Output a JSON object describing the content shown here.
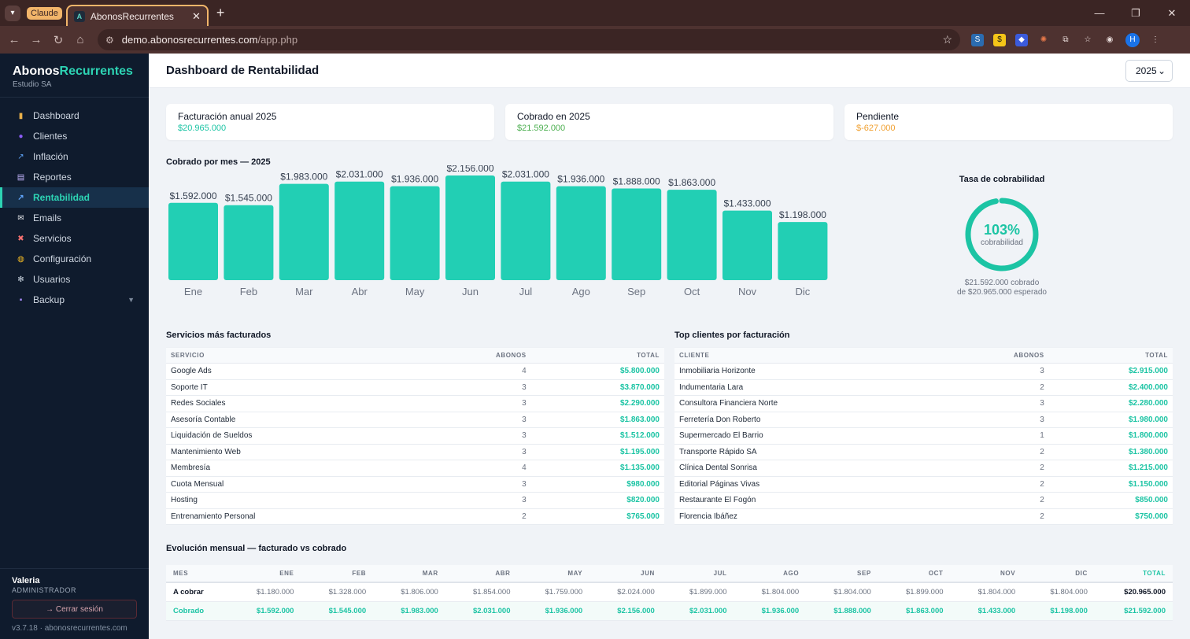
{
  "browser": {
    "tab_group": "Claude",
    "tab_title": "AbonosRecurrentes",
    "tab_favicon": "A",
    "url_host": "demo.abonosrecurrentes.com",
    "url_path": "/app.php",
    "profile_initial": "H"
  },
  "sidebar": {
    "brand_a": "Abonos",
    "brand_b": "Recurrentes",
    "org": "Estudio SA",
    "items": [
      {
        "label": "Dashboard",
        "icon": "chart-icon",
        "color": "#e8b04a"
      },
      {
        "label": "Clientes",
        "icon": "users-icon",
        "color": "#8b5cf6"
      },
      {
        "label": "Inflación",
        "icon": "trend-icon",
        "color": "#60a5fa"
      },
      {
        "label": "Reportes",
        "icon": "printer-icon",
        "color": "#c4b5fd"
      },
      {
        "label": "Rentabilidad",
        "icon": "trend-icon",
        "color": "#60a5fa"
      },
      {
        "label": "Emails",
        "icon": "mail-icon",
        "color": "#e5e7eb"
      },
      {
        "label": "Servicios",
        "icon": "tools-icon",
        "color": "#f87171"
      },
      {
        "label": "Configuración",
        "icon": "palette-icon",
        "color": "#fbbf24"
      },
      {
        "label": "Usuarios",
        "icon": "gear-icon",
        "color": "#cbd5e1"
      },
      {
        "label": "Backup",
        "icon": "disk-icon",
        "color": "#a78bfa"
      }
    ],
    "active_index": 4,
    "user_name": "Valeria",
    "user_role": "ADMINISTRADOR",
    "logout_label": "→ Cerrar sesión",
    "version": "v3.7.18 · abonosrecurrentes.com"
  },
  "header": {
    "title": "Dashboard de Rentabilidad",
    "year": "2025"
  },
  "kpis": [
    {
      "label": "Facturación anual 2025",
      "value": "$20.965.000",
      "color": "#1cc4a4"
    },
    {
      "label": "Cobrado en 2025",
      "value": "$21.592.000",
      "color": "#4caf50"
    },
    {
      "label": "Pendiente",
      "value": "$-627.000",
      "color": "#f0a030"
    }
  ],
  "chart_data": {
    "type": "bar",
    "title": "Cobrado por mes — 2025",
    "categories": [
      "Ene",
      "Feb",
      "Mar",
      "Abr",
      "May",
      "Jun",
      "Jul",
      "Ago",
      "Sep",
      "Oct",
      "Nov",
      "Dic"
    ],
    "values": [
      1592000,
      1545000,
      1983000,
      2031000,
      1936000,
      2156000,
      2031000,
      1936000,
      1888000,
      1863000,
      1433000,
      1198000
    ],
    "labels": [
      "$1.592.000",
      "$1.545.000",
      "$1.983.000",
      "$2.031.000",
      "$1.936.000",
      "$2.156.000",
      "$2.031.000",
      "$1.936.000",
      "$1.888.000",
      "$1.863.000",
      "$1.433.000",
      "$1.198.000"
    ],
    "color": "#22cfb4",
    "grid": false,
    "xlabel": "",
    "ylabel": ""
  },
  "ring": {
    "title": "Tasa de cobrabilidad",
    "percent_label": "103%",
    "percent": 103,
    "sub": "cobrabilidad",
    "foot1": "$21.592.000 cobrado",
    "foot2": "de $20.965.000 esperado"
  },
  "services": {
    "title": "Servicios más facturados",
    "headers": [
      "SERVICIO",
      "ABONOS",
      "TOTAL"
    ],
    "rows": [
      [
        "Google Ads",
        "4",
        "$5.800.000"
      ],
      [
        "Soporte IT",
        "3",
        "$3.870.000"
      ],
      [
        "Redes Sociales",
        "3",
        "$2.290.000"
      ],
      [
        "Asesoría Contable",
        "3",
        "$1.863.000"
      ],
      [
        "Liquidación de Sueldos",
        "3",
        "$1.512.000"
      ],
      [
        "Mantenimiento Web",
        "3",
        "$1.195.000"
      ],
      [
        "Membresía",
        "4",
        "$1.135.000"
      ],
      [
        "Cuota Mensual",
        "3",
        "$980.000"
      ],
      [
        "Hosting",
        "3",
        "$820.000"
      ],
      [
        "Entrenamiento Personal",
        "2",
        "$765.000"
      ]
    ]
  },
  "clients": {
    "title": "Top clientes por facturación",
    "headers": [
      "CLIENTE",
      "ABONOS",
      "TOTAL"
    ],
    "rows": [
      [
        "Inmobiliaria Horizonte",
        "3",
        "$2.915.000"
      ],
      [
        "Indumentaria Lara",
        "2",
        "$2.400.000"
      ],
      [
        "Consultora Financiera Norte",
        "3",
        "$2.280.000"
      ],
      [
        "Ferretería Don Roberto",
        "3",
        "$1.980.000"
      ],
      [
        "Supermercado El Barrio",
        "1",
        "$1.800.000"
      ],
      [
        "Transporte Rápido SA",
        "2",
        "$1.380.000"
      ],
      [
        "Clínica Dental Sonrisa",
        "2",
        "$1.215.000"
      ],
      [
        "Editorial Páginas Vivas",
        "2",
        "$1.150.000"
      ],
      [
        "Restaurante El Fogón",
        "2",
        "$850.000"
      ],
      [
        "Florencia Ibáñez",
        "2",
        "$750.000"
      ]
    ]
  },
  "evolution": {
    "title": "Evolución mensual — facturado vs cobrado",
    "headers": [
      "MES",
      "ENE",
      "FEB",
      "MAR",
      "ABR",
      "MAY",
      "JUN",
      "JUL",
      "AGO",
      "SEP",
      "OCT",
      "NOV",
      "DIC",
      "TOTAL"
    ],
    "rows": [
      {
        "label": "A cobrar",
        "cells": [
          "$1.180.000",
          "$1.328.000",
          "$1.806.000",
          "$1.854.000",
          "$1.759.000",
          "$2.024.000",
          "$1.899.000",
          "$1.804.000",
          "$1.804.000",
          "$1.899.000",
          "$1.804.000",
          "$1.804.000"
        ],
        "total": "$20.965.000"
      },
      {
        "label": "Cobrado",
        "cells": [
          "$1.592.000",
          "$1.545.000",
          "$1.983.000",
          "$2.031.000",
          "$1.936.000",
          "$2.156.000",
          "$2.031.000",
          "$1.936.000",
          "$1.888.000",
          "$1.863.000",
          "$1.433.000",
          "$1.198.000"
        ],
        "total": "$21.592.000"
      }
    ]
  }
}
